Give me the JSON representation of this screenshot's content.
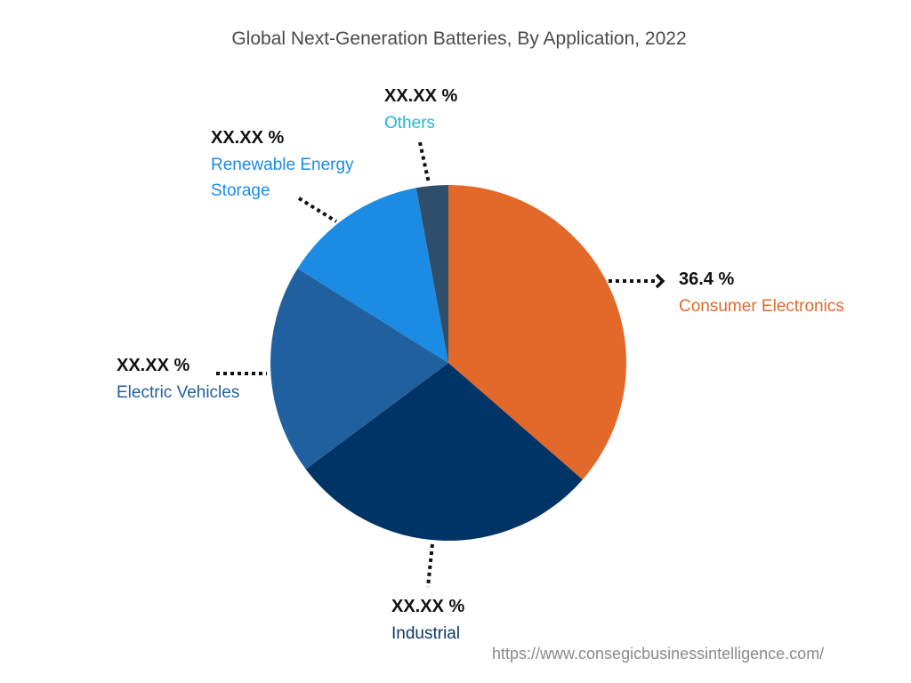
{
  "title": "Global Next-Generation Batteries, By Application, 2022",
  "source": "https://www.consegicbusinessintelligence.com/",
  "slices": [
    {
      "name": "Consumer Electronics",
      "label_value": "36.4 %",
      "pct": 36.4,
      "color": "#E2692A",
      "label_color": "#E2692A"
    },
    {
      "name": "Industrial",
      "label_value": "XX.XX %",
      "pct": 28.4,
      "color": "#003366",
      "label_color": "#0D3868"
    },
    {
      "name": "Electric Vehicles",
      "label_value": "XX.XX %",
      "pct": 19.1,
      "color": "#21609F",
      "label_color": "#21609F"
    },
    {
      "name": "Renewable Energy Storage",
      "name_line1": "Renewable Energy",
      "name_line2": "Storage",
      "label_value": "XX.XX %",
      "pct": 13.2,
      "color": "#1B8BE3",
      "label_color": "#1B8BE3"
    },
    {
      "name": "Others",
      "label_value": "XX.XX %",
      "pct": 2.9,
      "color": "#2E4E6B",
      "label_color": "#1FB8D8"
    }
  ],
  "chart_data": {
    "type": "pie",
    "title": "Global Next-Generation Batteries, By Application, 2022",
    "categories": [
      "Consumer Electronics",
      "Industrial",
      "Electric Vehicles",
      "Renewable Energy Storage",
      "Others"
    ],
    "values": [
      36.4,
      28.4,
      19.1,
      13.2,
      2.9
    ],
    "value_labels": [
      "36.4 %",
      "XX.XX %",
      "XX.XX %",
      "XX.XX %",
      "XX.XX %"
    ],
    "colors": [
      "#E2692A",
      "#003366",
      "#21609F",
      "#1B8BE3",
      "#2E4E6B"
    ],
    "start_angle": "12 o'clock, clockwise",
    "note": "Only Consumer Electronics value is labeled (36.4%); other slice values estimated from geometry",
    "legend": "callout labels with dotted leader lines"
  }
}
